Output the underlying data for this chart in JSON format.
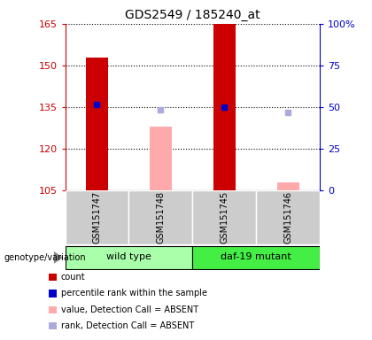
{
  "title": "GDS2549 / 185240_at",
  "samples": [
    "GSM151747",
    "GSM151748",
    "GSM151745",
    "GSM151746"
  ],
  "ylim_left": [
    105,
    165
  ],
  "ylim_right": [
    0,
    100
  ],
  "yticks_left": [
    105,
    120,
    135,
    150,
    165
  ],
  "yticks_right": [
    0,
    25,
    50,
    75,
    100
  ],
  "count_bars": {
    "0": 153,
    "2": 165
  },
  "absent_value_bars": {
    "1": 128,
    "3": 108
  },
  "percentile_markers": {
    "0": 136,
    "2": 135
  },
  "absent_rank_markers": {
    "1": 134,
    "3": 133
  },
  "color_count": "#cc0000",
  "color_percentile": "#0000cc",
  "color_absent_value": "#ffaaaa",
  "color_absent_rank": "#aaaadd",
  "group_labels": [
    "wild type",
    "daf-19 mutant"
  ],
  "group_ranges": [
    [
      0,
      1
    ],
    [
      2,
      3
    ]
  ],
  "group_colors": [
    "#aaffaa",
    "#44ee44"
  ],
  "bar_width": 0.35,
  "legend_items": [
    {
      "label": "count",
      "color": "#cc0000"
    },
    {
      "label": "percentile rank within the sample",
      "color": "#0000cc"
    },
    {
      "label": "value, Detection Call = ABSENT",
      "color": "#ffaaaa"
    },
    {
      "label": "rank, Detection Call = ABSENT",
      "color": "#aaaadd"
    }
  ]
}
